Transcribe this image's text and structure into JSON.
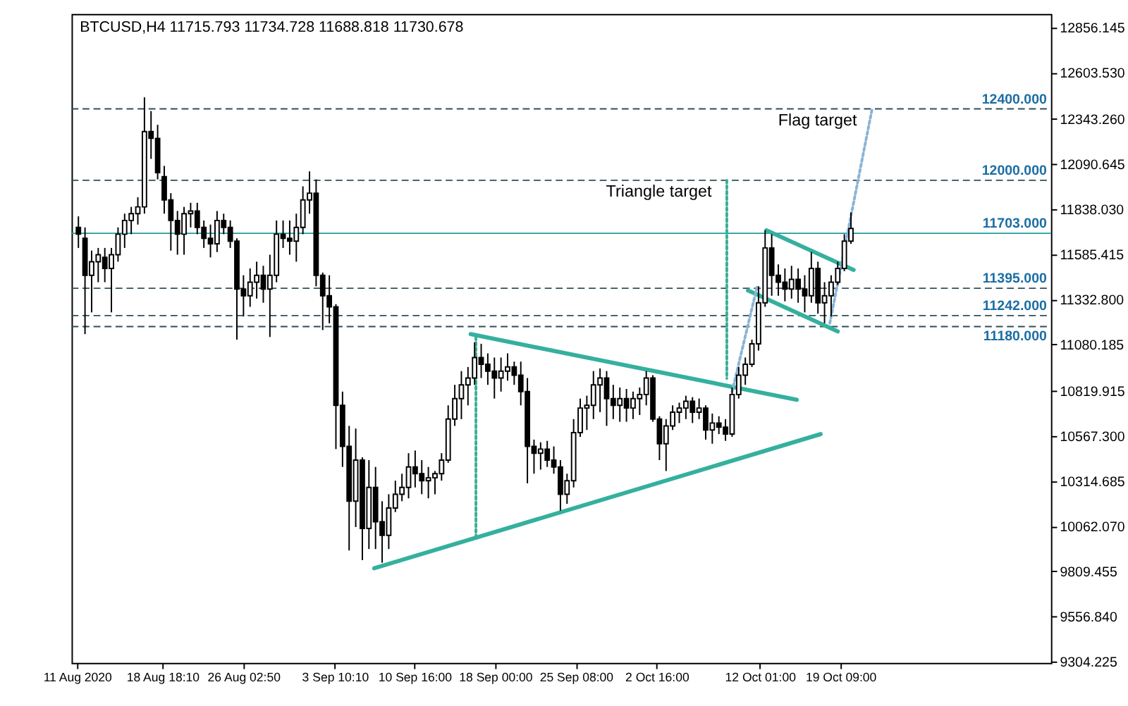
{
  "chart_data": {
    "type": "candlestick",
    "title": "BTCUSD,H4 11715.793 11734.728 11688.818 11730.678",
    "color": "#000000",
    "x": [
      "2020-08-11T03:00",
      "2020-08-11T17:24",
      "2020-08-12T07:48",
      "2020-08-12T22:12",
      "2020-08-13T12:36",
      "2020-08-14T03:00",
      "2020-08-14T17:24",
      "2020-08-15T07:48",
      "2020-08-15T22:12",
      "2020-08-16T12:36",
      "2020-08-17T03:00",
      "2020-08-17T17:24",
      "2020-08-18T07:48",
      "2020-08-18T22:12",
      "2020-08-19T12:36",
      "2020-08-20T03:00",
      "2020-08-20T17:24",
      "2020-08-21T07:48",
      "2020-08-21T22:12",
      "2020-08-22T12:36",
      "2020-08-23T03:00",
      "2020-08-23T17:24",
      "2020-08-24T07:48",
      "2020-08-24T22:12",
      "2020-08-25T12:36",
      "2020-08-26T03:00",
      "2020-08-26T17:24",
      "2020-08-27T07:48",
      "2020-08-27T22:12",
      "2020-08-28T12:36",
      "2020-08-29T03:00",
      "2020-08-29T17:24",
      "2020-08-30T07:48",
      "2020-08-30T22:12",
      "2020-08-31T12:36",
      "2020-09-01T03:00",
      "2020-09-01T17:24",
      "2020-09-02T07:48",
      "2020-09-02T22:12",
      "2020-09-03T12:36",
      "2020-09-04T03:00",
      "2020-09-04T17:24",
      "2020-09-05T07:48",
      "2020-09-05T22:12",
      "2020-09-06T12:36",
      "2020-09-07T03:00",
      "2020-09-07T17:24",
      "2020-09-08T07:48",
      "2020-09-08T22:12",
      "2020-09-09T12:36",
      "2020-09-10T03:00",
      "2020-09-10T17:24",
      "2020-09-11T07:48",
      "2020-09-11T22:12",
      "2020-09-12T12:36",
      "2020-09-13T03:00",
      "2020-09-13T17:24",
      "2020-09-14T07:48",
      "2020-09-14T22:12",
      "2020-09-15T12:36",
      "2020-09-16T03:00",
      "2020-09-16T17:24",
      "2020-09-17T07:48",
      "2020-09-17T22:12",
      "2020-09-18T12:36",
      "2020-09-19T03:00",
      "2020-09-19T17:24",
      "2020-09-20T07:48",
      "2020-09-20T22:12",
      "2020-09-21T12:36",
      "2020-09-22T03:00",
      "2020-09-22T17:24",
      "2020-09-23T07:48",
      "2020-09-23T22:12",
      "2020-09-24T12:36",
      "2020-09-25T03:00",
      "2020-09-25T17:24",
      "2020-09-26T07:48",
      "2020-09-26T22:12",
      "2020-09-27T12:36",
      "2020-09-28T03:00",
      "2020-09-28T17:24",
      "2020-09-29T07:48",
      "2020-09-29T22:12",
      "2020-09-30T12:36",
      "2020-10-01T03:00",
      "2020-10-01T17:24",
      "2020-10-02T07:48",
      "2020-10-02T22:12",
      "2020-10-03T12:36",
      "2020-10-04T03:00",
      "2020-10-04T17:24",
      "2020-10-05T07:48",
      "2020-10-05T22:12",
      "2020-10-06T12:36",
      "2020-10-07T03:00",
      "2020-10-07T17:24",
      "2020-10-08T07:48",
      "2020-10-08T22:12",
      "2020-10-09T12:36",
      "2020-10-10T03:00",
      "2020-10-10T17:24",
      "2020-10-11T07:48",
      "2020-10-11T22:12",
      "2020-10-12T12:36",
      "2020-10-13T03:00",
      "2020-10-13T17:24",
      "2020-10-14T07:48",
      "2020-10-14T22:12",
      "2020-10-15T12:36",
      "2020-10-16T03:00",
      "2020-10-16T17:24",
      "2020-10-17T07:48",
      "2020-10-17T22:12",
      "2020-10-18T12:36",
      "2020-10-19T03:00",
      "2020-10-19T17:24",
      "2020-10-20T07:48"
    ],
    "ohlc": [
      [
        11736,
        11798,
        11621,
        11698
      ],
      [
        11675,
        11736,
        11138,
        11468
      ],
      [
        11468,
        11606,
        11260,
        11544
      ],
      [
        11544,
        11621,
        11429,
        11583
      ],
      [
        11568,
        11621,
        11429,
        11506
      ],
      [
        11506,
        11621,
        11260,
        11583
      ],
      [
        11583,
        11736,
        11544,
        11698
      ],
      [
        11698,
        11813,
        11621,
        11775
      ],
      [
        11775,
        11851,
        11698,
        11813
      ],
      [
        11813,
        11905,
        11752,
        11851
      ],
      [
        11851,
        12465,
        11813,
        12273
      ],
      [
        12273,
        12388,
        12120,
        12235
      ],
      [
        12235,
        12311,
        12005,
        12043
      ],
      [
        12020,
        12081,
        11813,
        11890
      ],
      [
        11890,
        11928,
        11606,
        11775
      ],
      [
        11775,
        11828,
        11583,
        11698
      ],
      [
        11698,
        11851,
        11583,
        11813
      ],
      [
        11813,
        11874,
        11736,
        11828
      ],
      [
        11828,
        11874,
        11698,
        11736
      ],
      [
        11736,
        11775,
        11621,
        11675
      ],
      [
        11675,
        11752,
        11568,
        11644
      ],
      [
        11644,
        11828,
        11598,
        11775
      ],
      [
        11775,
        11813,
        11698,
        11736
      ],
      [
        11736,
        11775,
        11621,
        11659
      ],
      [
        11659,
        11675,
        11107,
        11391
      ],
      [
        11391,
        11468,
        11237,
        11353
      ],
      [
        11353,
        11506,
        11291,
        11429
      ],
      [
        11429,
        11544,
        11337,
        11468
      ],
      [
        11468,
        11521,
        11314,
        11391
      ],
      [
        11391,
        11583,
        11122,
        11468
      ],
      [
        11468,
        11775,
        11429,
        11698
      ],
      [
        11698,
        11775,
        11621,
        11675
      ],
      [
        11675,
        11775,
        11583,
        11659
      ],
      [
        11659,
        11813,
        11544,
        11736
      ],
      [
        11736,
        11966,
        11698,
        11890
      ],
      [
        11890,
        12050,
        11813,
        11928
      ],
      [
        11928,
        12005,
        11406,
        11468
      ],
      [
        11468,
        11483,
        11161,
        11353
      ],
      [
        11353,
        11468,
        11199,
        11291
      ],
      [
        11291,
        11306,
        10494,
        10739
      ],
      [
        10739,
        10816,
        10394,
        10509
      ],
      [
        10509,
        10624,
        9926,
        10202
      ],
      [
        10202,
        10609,
        10057,
        10432
      ],
      [
        10432,
        10448,
        9872,
        10049
      ],
      [
        10049,
        10432,
        9934,
        10279
      ],
      [
        10279,
        10394,
        9934,
        10087
      ],
      [
        10087,
        10202,
        9857,
        10011
      ],
      [
        10011,
        10241,
        9934,
        10164
      ],
      [
        10164,
        10317,
        10141,
        10241
      ],
      [
        10241,
        10356,
        10202,
        10279
      ],
      [
        10279,
        10471,
        10218,
        10394
      ],
      [
        10394,
        10486,
        10279,
        10356
      ],
      [
        10356,
        10432,
        10241,
        10317
      ],
      [
        10317,
        10394,
        10218,
        10333
      ],
      [
        10333,
        10371,
        10241,
        10356
      ],
      [
        10356,
        10471,
        10317,
        10432
      ],
      [
        10432,
        10739,
        10417,
        10662
      ],
      [
        10662,
        10854,
        10624,
        10777
      ],
      [
        10777,
        10931,
        10662,
        10854
      ],
      [
        10854,
        10954,
        10739,
        10892
      ],
      [
        10892,
        11092,
        10854,
        11007
      ],
      [
        11007,
        11084,
        10892,
        10969
      ],
      [
        10969,
        11030,
        10854,
        10931
      ],
      [
        10931,
        11007,
        10777,
        10892
      ],
      [
        10892,
        11007,
        10816,
        10931
      ],
      [
        10931,
        11030,
        10877,
        10954
      ],
      [
        10954,
        10984,
        10854,
        10908
      ],
      [
        10908,
        10984,
        10739,
        10816
      ],
      [
        10816,
        10892,
        10302,
        10509
      ],
      [
        10509,
        10547,
        10356,
        10471
      ],
      [
        10471,
        10532,
        10379,
        10494
      ],
      [
        10494,
        10540,
        10394,
        10432
      ],
      [
        10432,
        10509,
        10356,
        10394
      ],
      [
        10394,
        10432,
        10149,
        10241
      ],
      [
        10241,
        10356,
        10187,
        10317
      ],
      [
        10317,
        10662,
        10279,
        10586
      ],
      [
        10586,
        10777,
        10563,
        10724
      ],
      [
        10724,
        10793,
        10601,
        10739
      ],
      [
        10739,
        10931,
        10662,
        10854
      ],
      [
        10854,
        10946,
        10701,
        10892
      ],
      [
        10892,
        10931,
        10624,
        10777
      ],
      [
        10777,
        10854,
        10662,
        10739
      ],
      [
        10739,
        10839,
        10647,
        10777
      ],
      [
        10777,
        10831,
        10647,
        10724
      ],
      [
        10724,
        10816,
        10662,
        10777
      ],
      [
        10777,
        10839,
        10685,
        10800
      ],
      [
        10800,
        10931,
        10739,
        10892
      ],
      [
        10892,
        10908,
        10647,
        10662
      ],
      [
        10662,
        10678,
        10432,
        10524
      ],
      [
        10524,
        10662,
        10371,
        10624
      ],
      [
        10624,
        10739,
        10601,
        10701
      ],
      [
        10701,
        10754,
        10640,
        10724
      ],
      [
        10724,
        10793,
        10662,
        10762
      ],
      [
        10762,
        10785,
        10640,
        10701
      ],
      [
        10701,
        10777,
        10662,
        10724
      ],
      [
        10724,
        10739,
        10547,
        10601
      ],
      [
        10601,
        10693,
        10524,
        10640
      ],
      [
        10640,
        10678,
        10578,
        10617
      ],
      [
        10617,
        10662,
        10540,
        10578
      ],
      [
        10578,
        10839,
        10563,
        10800
      ],
      [
        10800,
        10954,
        10777,
        10908
      ],
      [
        10908,
        11007,
        10854,
        10969
      ],
      [
        10969,
        11107,
        10954,
        11084
      ],
      [
        11084,
        11406,
        11046,
        11314
      ],
      [
        11314,
        11720,
        11291,
        11621
      ],
      [
        11621,
        11698,
        11353,
        11468
      ],
      [
        11468,
        11529,
        11353,
        11429
      ],
      [
        11429,
        11506,
        11322,
        11391
      ],
      [
        11391,
        11521,
        11337,
        11445
      ],
      [
        11445,
        11506,
        11314,
        11391
      ],
      [
        11391,
        11468,
        11260,
        11353
      ],
      [
        11353,
        11598,
        11314,
        11506
      ],
      [
        11506,
        11544,
        11253,
        11314
      ],
      [
        11314,
        11429,
        11199,
        11353
      ],
      [
        11353,
        11468,
        11237,
        11429
      ],
      [
        11429,
        11544,
        11414,
        11506
      ],
      [
        11506,
        11698,
        11491,
        11659
      ],
      [
        11659,
        11820,
        11644,
        11730
      ]
    ],
    "series": [
      {
        "type": "line",
        "x": [
          "2020-09-15T18:24",
          "2020-10-15T09:40"
        ],
        "values": [
          11138,
          10770
        ],
        "color": "#35b09e",
        "line_style": "solid"
      },
      {
        "type": "line",
        "x": [
          "2020-09-07T00:00",
          "2020-10-17T13:36"
        ],
        "values": [
          9826,
          10578
        ],
        "color": "#35b09e",
        "line_style": "solid"
      },
      {
        "type": "line",
        "x": [
          "2020-10-12T15:30",
          "2020-10-20T13:36"
        ],
        "values": [
          11720,
          11498
        ],
        "color": "#35b09e",
        "line_style": "solid"
      },
      {
        "type": "line",
        "x": [
          "2020-10-10T23:12",
          "2020-10-19T03:00"
        ],
        "values": [
          11383,
          11153
        ],
        "color": "#35b09e",
        "line_style": "solid"
      },
      {
        "type": "line",
        "x": [
          "2020-09-16T05:54",
          "2020-09-16T05:54"
        ],
        "values": [
          11122,
          10011
        ],
        "color": "#3aaf98",
        "line_style": "dotted"
      },
      {
        "type": "line",
        "x": [
          "2020-10-09T01:06",
          "2020-10-09T01:06"
        ],
        "values": [
          12000,
          10890
        ],
        "color": "#3aaf98",
        "line_style": "dotted"
      },
      {
        "type": "line",
        "x": [
          "2020-10-09T12:36",
          "2020-10-11T19:18"
        ],
        "values": [
          10816,
          11406
        ],
        "color": "#8ab4d6",
        "line_style": "dotted"
      },
      {
        "type": "line",
        "x": [
          "2020-10-18T09:42",
          "2020-10-22T05:54"
        ],
        "values": [
          11199,
          12400
        ],
        "color": "#8ab4d6",
        "line_style": "dotted"
      }
    ],
    "ref_lines": [
      {
        "axis": "y",
        "value": 12400,
        "label": "12400.000",
        "color": "#2f4f5a",
        "line_style": "dashed"
      },
      {
        "axis": "y",
        "value": 12000,
        "label": "12000.000",
        "color": "#2f4f5a",
        "line_style": "dashed"
      },
      {
        "axis": "y",
        "value": 11703,
        "label": "11703.000",
        "color": "#1f9e9e",
        "line_style": "solid"
      },
      {
        "axis": "y",
        "value": 11395,
        "label": "11395.000",
        "color": "#2f4f5a",
        "line_style": "dashed"
      },
      {
        "axis": "y",
        "value": 11242,
        "label": "11242.000",
        "color": "#2f4f5a",
        "line_style": "dashed"
      },
      {
        "axis": "y",
        "value": 11180,
        "label": "11180.000",
        "color": "#2f4f5a",
        "line_style": "dashed"
      }
    ],
    "annotations": [
      {
        "text": "Triangle target",
        "x": "2020-10-09T01:06",
        "y": 12000
      },
      {
        "text": "Flag target",
        "x": "2020-10-22T05:54",
        "y": 12400
      }
    ],
    "xlim": [
      "2020-08-10T12:00",
      "2020-11-07T12:00"
    ],
    "xticks": [
      {
        "value": "2020-08-11T00:00",
        "label": "11 Aug 2020"
      },
      {
        "value": "2020-08-18T18:10",
        "label": "18 Aug 18:10"
      },
      {
        "value": "2020-08-26T02:50",
        "label": "26 Aug 02:50"
      },
      {
        "value": "2020-09-03T10:10",
        "label": "3 Sep 10:10"
      },
      {
        "value": "2020-09-10T16:00",
        "label": "10 Sep 16:00"
      },
      {
        "value": "2020-09-18T00:00",
        "label": "18 Sep 00:00"
      },
      {
        "value": "2020-09-25T08:00",
        "label": "25 Sep 08:00"
      },
      {
        "value": "2020-10-02T16:00",
        "label": "2 Oct 16:00"
      },
      {
        "value": "2020-10-12T01:00",
        "label": "12 Oct 01:00"
      },
      {
        "value": "2020-10-19T09:00",
        "label": "19 Oct 09:00"
      }
    ],
    "ylim": [
      9296,
      12932
    ],
    "yticks": [
      {
        "value": 12856.145,
        "label": "12856.145"
      },
      {
        "value": 12603.53,
        "label": "12603.530"
      },
      {
        "value": 12343.26,
        "label": "12343.260"
      },
      {
        "value": 12090.645,
        "label": "12090.645"
      },
      {
        "value": 11838.03,
        "label": "11838.030"
      },
      {
        "value": 11585.415,
        "label": "11585.415"
      },
      {
        "value": 11332.8,
        "label": "11332.800"
      },
      {
        "value": 11080.185,
        "label": "11080.185"
      },
      {
        "value": 10819.915,
        "label": "10819.915"
      },
      {
        "value": 10567.3,
        "label": "10567.300"
      },
      {
        "value": 10314.685,
        "label": "10314.685"
      },
      {
        "value": 10062.07,
        "label": "10062.070"
      },
      {
        "value": 9809.455,
        "label": "9809.455"
      },
      {
        "value": 9556.84,
        "label": "9556.840"
      },
      {
        "value": 9304.225,
        "label": "9304.225"
      }
    ],
    "grid": false
  }
}
